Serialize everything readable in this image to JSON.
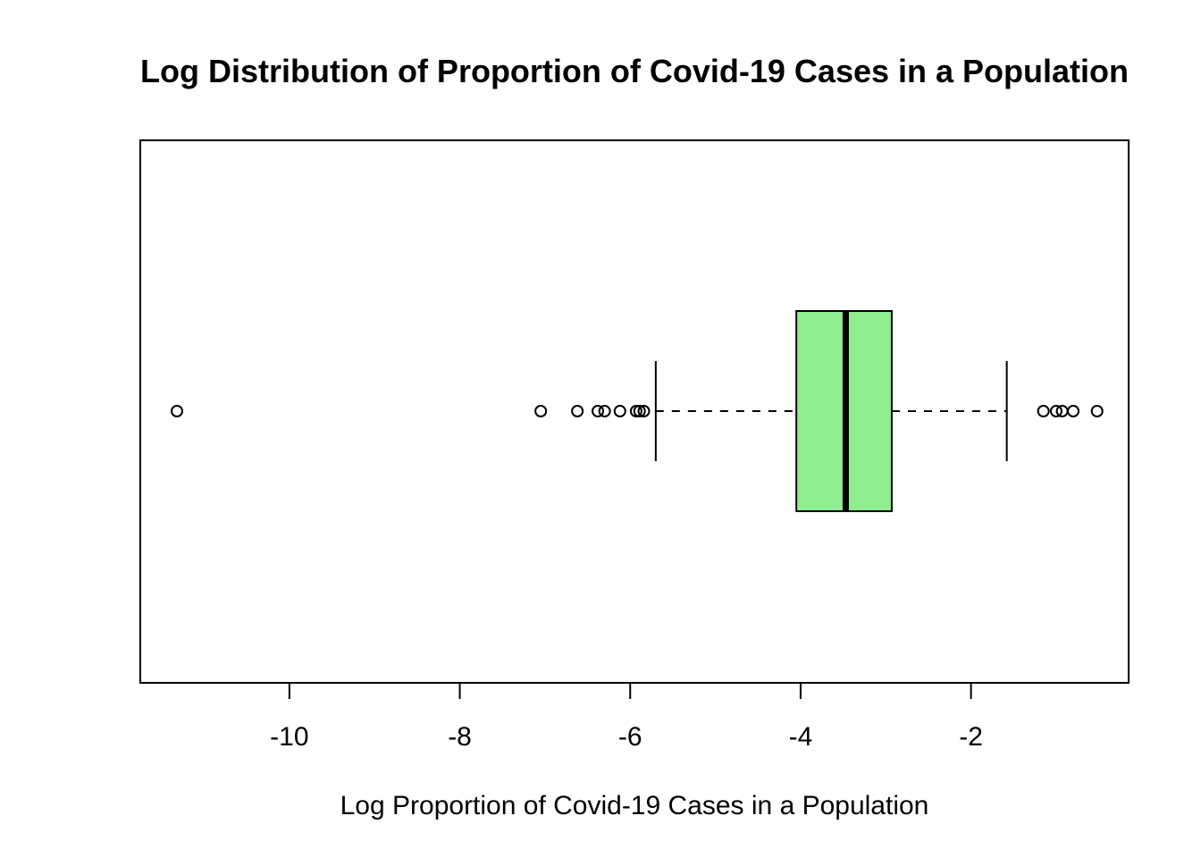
{
  "chart_data": {
    "type": "boxplot",
    "orientation": "horizontal",
    "title": "Log Distribution of Proportion of Covid-19 Cases in a Population",
    "xlabel": "Log Proportion of Covid-19 Cases in a Population",
    "ylabel": "",
    "xlim": [
      -11.75,
      -0.15
    ],
    "x_ticks": [
      -10,
      -8,
      -6,
      -4,
      -2
    ],
    "x_tick_labels": [
      "-10",
      "-8",
      "-6",
      "-4",
      "-2"
    ],
    "grid": false,
    "legend": null,
    "box": {
      "fill_color": "#90ee90",
      "whisker_low": -5.7,
      "q1": -4.05,
      "median": -3.47,
      "q3": -2.93,
      "whisker_high": -1.58,
      "outliers": [
        -11.32,
        -7.05,
        -6.62,
        -6.38,
        -6.3,
        -6.12,
        -5.93,
        -5.89,
        -5.84,
        -1.15,
        -1.0,
        -0.93,
        -0.8,
        -0.52
      ]
    }
  }
}
